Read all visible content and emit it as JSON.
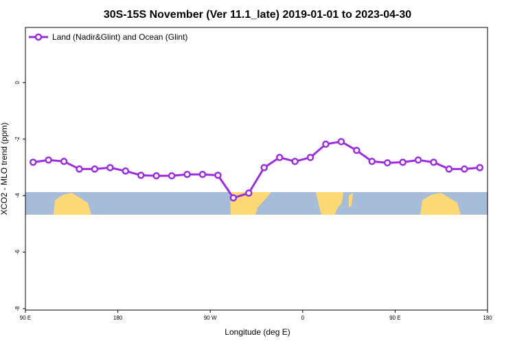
{
  "chart_data": {
    "type": "line",
    "title": "30S-15S November (Ver 11.1_late)   2019-01-01 to 2023-04-30",
    "x_label": "Longitude (deg E)",
    "y_label": "XCO2 - MLO trend (ppm)",
    "xlim": [
      90,
      540
    ],
    "xticks": [
      {
        "value": 90,
        "label": "90 E"
      },
      180,
      {
        "value": 270,
        "label": "90 W"
      },
      {
        "value": 360,
        "label": "0"
      },
      {
        "value": 450,
        "label": "90 E"
      },
      {
        "value": 540,
        "label": "180"
      }
    ],
    "ylim": [
      -8.05,
      1.95
    ],
    "yticks": [
      -8,
      -6,
      -4,
      -2,
      0
    ],
    "legend": "top-left",
    "x": [
      97.5,
      112.5,
      127.5,
      142.5,
      157.5,
      172.5,
      187.5,
      202.5,
      217.5,
      232.5,
      247.5,
      262.5,
      277.5,
      292.5,
      307.5,
      322.5,
      337.5,
      352.5,
      367.5,
      382.5,
      397.5,
      412.5,
      427.5,
      442.5,
      457.5,
      472.5,
      487.5,
      502.5,
      517.5,
      532.5
    ],
    "series": [
      {
        "name": "Land (Nadir&Glint) and Ocean (Glint)",
        "color": "#9b2de0",
        "values": [
          -2.82,
          -2.74,
          -2.79,
          -3.06,
          -3.06,
          -3.01,
          -3.13,
          -3.28,
          -3.3,
          -3.3,
          -3.25,
          -3.25,
          -3.28,
          -4.08,
          -3.91,
          -3.01,
          -2.65,
          -2.79,
          -2.65,
          -2.18,
          -2.09,
          -2.4,
          -2.79,
          -2.84,
          -2.82,
          -2.74,
          -2.82,
          -3.06,
          -3.06,
          -3.01
        ]
      }
    ]
  }
}
